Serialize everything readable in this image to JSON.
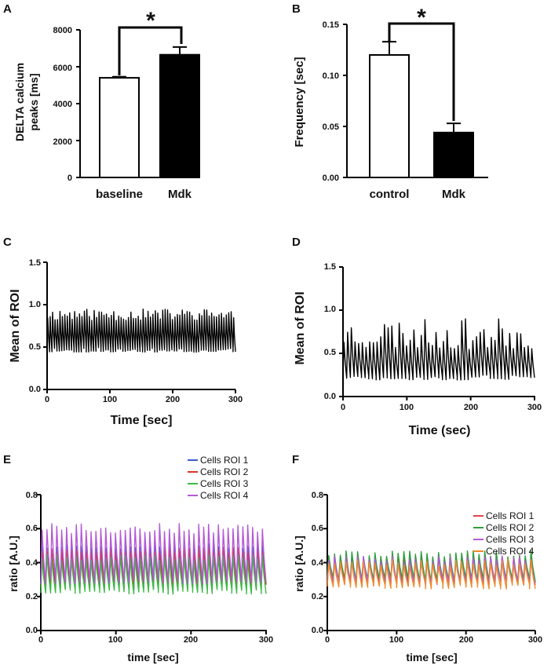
{
  "chart_data": [
    {
      "panel": "A",
      "type": "bar",
      "categories": [
        "baseline",
        "Mdk"
      ],
      "values": [
        5400,
        6650
      ],
      "errors": [
        60,
        420
      ],
      "bar_fills": [
        "#ffffff",
        "#000000"
      ],
      "ylabel": [
        "DELTA calcium",
        "peaks [ms]"
      ],
      "ylim": [
        0,
        8000
      ],
      "yticks": [
        "0",
        "2000",
        "4000",
        "6000",
        "8000"
      ],
      "significance": "*"
    },
    {
      "panel": "B",
      "type": "bar",
      "categories": [
        "control",
        "Mdk"
      ],
      "values": [
        0.12,
        0.044
      ],
      "errors": [
        0.013,
        0.009
      ],
      "bar_fills": [
        "#ffffff",
        "#000000"
      ],
      "ylabel": [
        "Frequency [sec]"
      ],
      "ylim": [
        0,
        0.15
      ],
      "yticks": [
        "0.00",
        "0.05",
        "0.10",
        "0.15"
      ],
      "significance": "*"
    },
    {
      "panel": "C",
      "type": "line",
      "xlabel": "Time [sec]",
      "ylabel": "Mean of ROI",
      "xlim": [
        0,
        300
      ],
      "ylim": [
        0,
        1.5
      ],
      "xticks": [
        "0",
        "100",
        "200",
        "300"
      ],
      "yticks": [
        "0.0",
        "0.5",
        "1.0",
        "1.5"
      ],
      "series": [
        {
          "name": "Mean of ROI",
          "color": "#000000",
          "baseline": 0.47,
          "peak": 0.88,
          "peak_jitter": 0.07,
          "n_peaks": 77
        }
      ]
    },
    {
      "panel": "D",
      "type": "line",
      "xlabel": "Time (sec)",
      "ylabel": "Mean of ROI",
      "xlim": [
        0,
        300
      ],
      "ylim": [
        0,
        1.5
      ],
      "xticks": [
        "0",
        "100",
        "200",
        "300"
      ],
      "yticks": [
        "0.0",
        "0.5",
        "1.0",
        "1.5"
      ],
      "series": [
        {
          "name": "Mean of ROI",
          "color": "#000000",
          "baseline": 0.22,
          "peak": 0.72,
          "peak_jitter": 0.18,
          "n_peaks": 52
        }
      ]
    },
    {
      "panel": "E",
      "type": "line",
      "xlabel": "time [sec]",
      "ylabel": "ratio [A.U.]",
      "xlim": [
        0,
        300
      ],
      "ylim": [
        0,
        0.8
      ],
      "xticks": [
        "0",
        "100",
        "200",
        "300"
      ],
      "yticks": [
        "0.0",
        "0.2",
        "0.4",
        "0.6",
        "0.8"
      ],
      "series": [
        {
          "name": "Cells ROI 1",
          "color": "#3b5fc9",
          "baseline": 0.27,
          "peak": 0.5,
          "peak_jitter": 0.02,
          "n_peaks": 46
        },
        {
          "name": "Cells ROI 2",
          "color": "#d9342b",
          "baseline": 0.26,
          "peak": 0.47,
          "peak_jitter": 0.02,
          "n_peaks": 46
        },
        {
          "name": "Cells ROI 3",
          "color": "#3cb846",
          "baseline": 0.23,
          "peak": 0.43,
          "peak_jitter": 0.02,
          "n_peaks": 46
        },
        {
          "name": "Cells ROI 4",
          "color": "#b45ad6",
          "baseline": 0.29,
          "peak": 0.6,
          "peak_jitter": 0.03,
          "n_peaks": 46
        }
      ]
    },
    {
      "panel": "F",
      "type": "line",
      "xlabel": "time [sec]",
      "ylabel": "ratio [A.U.]",
      "xlim": [
        0,
        300
      ],
      "ylim": [
        0,
        0.8
      ],
      "xticks": [
        "0",
        "100",
        "200",
        "300"
      ],
      "yticks": [
        "0.0",
        "0.2",
        "0.4",
        "0.6",
        "0.8"
      ],
      "series": [
        {
          "name": "Cells ROI 1",
          "color": "#e0454a",
          "baseline": 0.29,
          "peak": 0.43,
          "peak_jitter": 0.02,
          "n_peaks": 36
        },
        {
          "name": "Cells ROI 2",
          "color": "#2e9e3c",
          "baseline": 0.3,
          "peak": 0.45,
          "peak_jitter": 0.02,
          "n_peaks": 36
        },
        {
          "name": "Cells ROI 3",
          "color": "#b45ad6",
          "baseline": 0.28,
          "peak": 0.42,
          "peak_jitter": 0.02,
          "n_peaks": 36
        },
        {
          "name": "Cells ROI 4",
          "color": "#f08a2c",
          "baseline": 0.26,
          "peak": 0.4,
          "peak_jitter": 0.02,
          "n_peaks": 36
        }
      ]
    }
  ]
}
